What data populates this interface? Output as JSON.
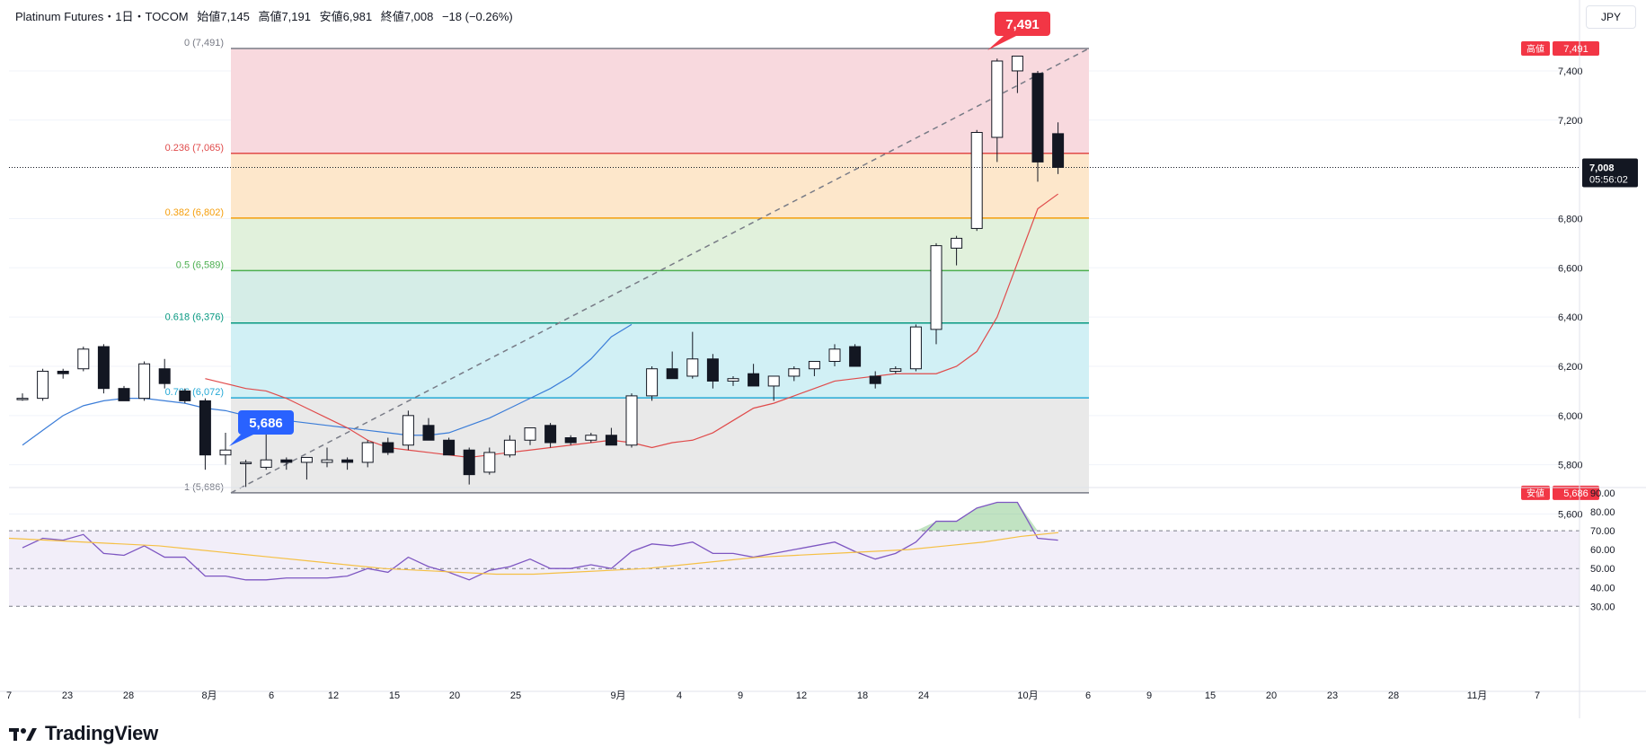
{
  "legend": {
    "symbol": "Platinum Futures・1日・TOCOM",
    "open": "始値7,145",
    "high": "高値7,191",
    "low": "安値6,981",
    "close": "終値7,008",
    "change": "−18 (−0.26%)"
  },
  "currency": "JPY",
  "brand": {
    "name": "TradingView"
  },
  "colors": {
    "up": "#ffffff",
    "down": "#131722",
    "ma_fast": "#e04b4b",
    "ma_slow": "#3b7dd8",
    "rsi": "#7e57c2",
    "rsi_ma": "#f5c045",
    "high_badge": "#f23645",
    "low_badge": "#2962ff"
  },
  "chart_data": {
    "type": "candlestick",
    "price_axis": {
      "ticks": [
        "5,600",
        "5,800",
        "6,000",
        "6,200",
        "6,400",
        "6,600",
        "6,800",
        "7,200",
        "7,400"
      ],
      "range": [
        5510,
        7660
      ]
    },
    "time_axis": [
      "7",
      "23",
      "28",
      "8月",
      "6",
      "12",
      "15",
      "20",
      "25",
      "9月",
      "4",
      "9",
      "12",
      "18",
      "24",
      "10月",
      "6",
      "9",
      "15",
      "20",
      "23",
      "28",
      "11月",
      "7"
    ],
    "current_price": {
      "value": "7,008",
      "countdown": "05:56:02"
    },
    "high_marker": {
      "label": "高値",
      "value": "7,491"
    },
    "low_marker": {
      "label": "安値",
      "value": "5,686"
    },
    "callout_high": "7,491",
    "callout_low": "5,686",
    "fibonacci": [
      {
        "label": "0 (7,491)",
        "price": 7491,
        "color": "#787b86",
        "fill": "#f8d7dc"
      },
      {
        "label": "0.236 (7,065)",
        "price": 7065,
        "color": "#e04b4b",
        "fill": "#fde6c8"
      },
      {
        "label": "0.382 (6,802)",
        "price": 6802,
        "color": "#f59e0b",
        "fill": "#dff0da"
      },
      {
        "label": "0.5 (6,589)",
        "price": 6589,
        "color": "#4caf50",
        "fill": "#d3ece6"
      },
      {
        "label": "0.618 (6,376)",
        "price": 6376,
        "color": "#089981",
        "fill": "#cfeff4"
      },
      {
        "label": "0.786 (6,072)",
        "price": 6072,
        "color": "#26a9d6",
        "fill": "#e8e8e8"
      },
      {
        "label": "1 (5,686)",
        "price": 5686,
        "color": "#787b86",
        "fill": "#d6e0fb"
      }
    ],
    "candles": [
      [
        6070,
        6090,
        6060,
        6070
      ],
      [
        6070,
        6190,
        6060,
        6180
      ],
      [
        6180,
        6190,
        6150,
        6170
      ],
      [
        6190,
        6280,
        6180,
        6270
      ],
      [
        6280,
        6290,
        6090,
        6110
      ],
      [
        6110,
        6120,
        6060,
        6060
      ],
      [
        6070,
        6220,
        6060,
        6210
      ],
      [
        6190,
        6230,
        6110,
        6130
      ],
      [
        6100,
        6110,
        6050,
        6060
      ],
      [
        6060,
        6070,
        5780,
        5840
      ],
      [
        5840,
        5930,
        5800,
        5860
      ],
      [
        5810,
        5820,
        5710,
        5810
      ],
      [
        5790,
        5930,
        5780,
        5820
      ],
      [
        5820,
        5830,
        5780,
        5810
      ],
      [
        5810,
        5830,
        5740,
        5830
      ],
      [
        5810,
        5870,
        5790,
        5820
      ],
      [
        5820,
        5830,
        5780,
        5810
      ],
      [
        5810,
        5900,
        5790,
        5890
      ],
      [
        5890,
        5910,
        5840,
        5850
      ],
      [
        5880,
        6020,
        5860,
        6000
      ],
      [
        5960,
        5990,
        5910,
        5900
      ],
      [
        5900,
        5910,
        5840,
        5840
      ],
      [
        5860,
        5870,
        5720,
        5760
      ],
      [
        5770,
        5870,
        5760,
        5850
      ],
      [
        5840,
        5920,
        5830,
        5900
      ],
      [
        5900,
        5950,
        5880,
        5950
      ],
      [
        5960,
        5970,
        5870,
        5890
      ],
      [
        5910,
        5920,
        5880,
        5890
      ],
      [
        5900,
        5930,
        5890,
        5920
      ],
      [
        5920,
        5950,
        5890,
        5880
      ],
      [
        5880,
        6090,
        5870,
        6080
      ],
      [
        6080,
        6200,
        6060,
        6190
      ],
      [
        6190,
        6260,
        6150,
        6150
      ],
      [
        6160,
        6340,
        6150,
        6230
      ],
      [
        6230,
        6250,
        6110,
        6140
      ],
      [
        6140,
        6160,
        6120,
        6150
      ],
      [
        6170,
        6210,
        6130,
        6120
      ],
      [
        6120,
        6160,
        6060,
        6160
      ],
      [
        6160,
        6200,
        6140,
        6190
      ],
      [
        6190,
        6220,
        6160,
        6220
      ],
      [
        6220,
        6290,
        6200,
        6270
      ],
      [
        6280,
        6290,
        6200,
        6200
      ],
      [
        6160,
        6180,
        6110,
        6130
      ],
      [
        6180,
        6200,
        6170,
        6190
      ],
      [
        6190,
        6370,
        6180,
        6360
      ],
      [
        6350,
        6700,
        6290,
        6690
      ],
      [
        6680,
        6730,
        6610,
        6720
      ],
      [
        6760,
        7160,
        6750,
        7150
      ],
      [
        7130,
        7450,
        7030,
        7440
      ],
      [
        7400,
        7460,
        7310,
        7460
      ],
      [
        7390,
        7400,
        6950,
        7030
      ],
      [
        7145,
        7191,
        6981,
        7008
      ]
    ],
    "ma_fast": [
      6150,
      6130,
      6110,
      6100,
      6070,
      6030,
      5990,
      5950,
      5900,
      5870,
      5860,
      5850,
      5840,
      5830,
      5840,
      5850,
      5860,
      5870,
      5880,
      5890,
      5900,
      5890,
      5870,
      5890,
      5900,
      5930,
      5980,
      6030,
      6050,
      6080,
      6110,
      6140,
      6150,
      6160,
      6170,
      6170,
      6170,
      6200,
      6260,
      6400,
      6620,
      6840,
      6900
    ],
    "ma_slow": [
      5880,
      5940,
      6000,
      6040,
      6060,
      6070,
      6070,
      6060,
      6050,
      6030,
      6020,
      6000,
      5990,
      5980,
      5970,
      5960,
      5950,
      5940,
      5930,
      5920,
      5920,
      5930,
      5960,
      5990,
      6030,
      6070,
      6110,
      6160,
      6230,
      6320,
      6370
    ],
    "rsi": {
      "ticks": [
        "30.00",
        "40.00",
        "50.00",
        "60.00",
        "70.00",
        "80.00",
        "90.00"
      ],
      "overbought": 70,
      "middle": 50,
      "oversold": 30,
      "values": [
        61,
        66,
        65,
        68,
        58,
        57,
        62,
        56,
        56,
        46,
        46,
        44,
        44,
        45,
        45,
        45,
        46,
        50,
        48,
        56,
        51,
        48,
        44,
        49,
        51,
        55,
        50,
        50,
        52,
        50,
        59,
        63,
        62,
        64,
        58,
        58,
        56,
        58,
        60,
        62,
        64,
        59,
        55,
        58,
        64,
        75,
        75,
        82,
        85,
        85,
        66,
        65
      ],
      "ma": [
        66,
        65,
        64,
        63,
        62,
        60,
        58,
        56,
        54,
        52,
        50,
        49,
        48,
        47,
        47,
        48,
        49,
        50,
        52,
        54,
        56,
        57,
        58,
        59,
        60,
        62,
        64,
        67,
        69
      ]
    }
  }
}
